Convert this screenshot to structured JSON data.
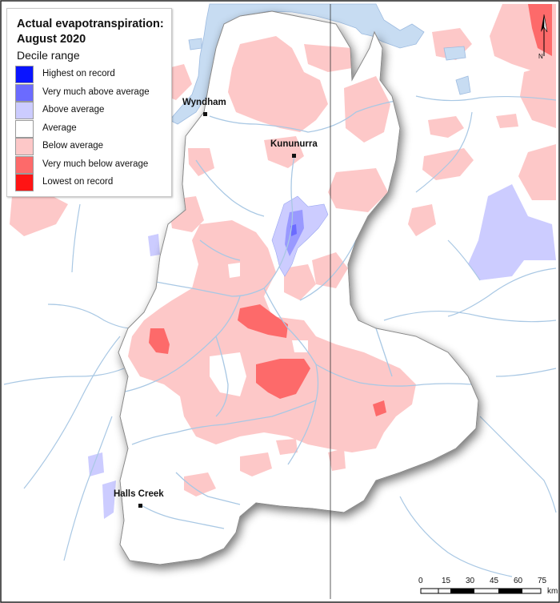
{
  "legend": {
    "title_line1": "Actual evapotranspiration:",
    "title_line2": "August 2020",
    "subtitle": "Decile range",
    "items": [
      {
        "label": "Highest on record",
        "color": "#0a14ff"
      },
      {
        "label": "Very much above average",
        "color": "#6b6bff"
      },
      {
        "label": "Above average",
        "color": "#ccccff"
      },
      {
        "label": "Average",
        "color": "#ffffff"
      },
      {
        "label": "Below average",
        "color": "#fdc8c8"
      },
      {
        "label": "Very much below average",
        "color": "#fd6a6a"
      },
      {
        "label": "Lowest on record",
        "color": "#ff1414"
      }
    ]
  },
  "towns": [
    {
      "name": "Wyndham"
    },
    {
      "name": "Kununurra"
    },
    {
      "name": "Halls Creek"
    }
  ],
  "scale_bar": {
    "ticks": [
      "0",
      "15",
      "30",
      "45",
      "60",
      "75"
    ],
    "unit": "km"
  },
  "north_arrow": {
    "letter": "N"
  },
  "colors": {
    "water": "#c7dcf2",
    "river": "#a9c8e4",
    "border": "#222222"
  }
}
